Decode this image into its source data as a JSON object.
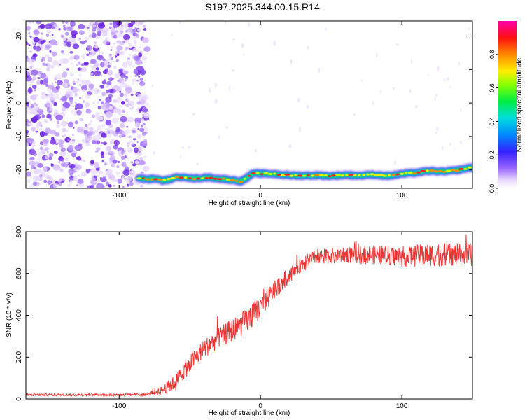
{
  "page": {
    "title": "S197.2025.344.00.15.R14"
  },
  "chart_data": [
    {
      "type": "heatmap",
      "title": "S197.2025.344.00.15.R14",
      "xlabel": "Height of straight line (km)",
      "ylabel": "Frequency (Hz)",
      "xlim": [
        -166,
        150
      ],
      "ylim": [
        -25.5,
        24.5
      ],
      "x_ticks": [
        -100,
        0,
        100
      ],
      "y_ticks": [
        -20,
        -10,
        0,
        10,
        20
      ],
      "noise_region_x": [
        -166,
        -82
      ],
      "signal_track": {
        "x": [
          -86,
          -80,
          -74,
          -70,
          -66,
          -60,
          -54,
          -48,
          -42,
          -36,
          -30,
          -24,
          -18,
          -14,
          -10,
          -6,
          -2,
          0,
          10,
          20,
          30,
          40,
          50,
          60,
          70,
          80,
          90,
          100,
          110,
          120,
          130,
          140,
          150
        ],
        "freq": [
          -22.5,
          -22.8,
          -22.6,
          -23.2,
          -23.0,
          -22.3,
          -22.0,
          -22.6,
          -22.4,
          -22.2,
          -22.6,
          -22.8,
          -23.1,
          -23.4,
          -22.5,
          -21.2,
          -21.0,
          -21.1,
          -21.2,
          -21.6,
          -21.7,
          -21.6,
          -21.8,
          -21.5,
          -21.7,
          -21.4,
          -21.8,
          -21.2,
          -20.8,
          -20.3,
          -20.5,
          -20.0,
          -19.2
        ]
      },
      "colorbar": {
        "label": "Normalized spectral amplitude",
        "range": [
          0,
          1
        ],
        "ticks": [
          0.0,
          0.2,
          0.4,
          0.6,
          0.8
        ]
      }
    },
    {
      "type": "line",
      "xlabel": "Height of straight line (km)",
      "ylabel": "SNR (10 * v/v)",
      "xlim": [
        -166,
        150
      ],
      "ylim": [
        0,
        800
      ],
      "x_ticks": [
        -100,
        0,
        100
      ],
      "y_ticks": [
        0,
        200,
        400,
        600,
        800
      ],
      "line_color": "#ee3333",
      "series": [
        {
          "name": "SNR",
          "trend_x": [
            -166,
            -100,
            -80,
            -70,
            -60,
            -50,
            -40,
            -30,
            -20,
            -10,
            0,
            10,
            20,
            30,
            40,
            60,
            80,
            100,
            120,
            150
          ],
          "trend_y": [
            20,
            20,
            22,
            40,
            80,
            170,
            240,
            290,
            330,
            370,
            440,
            520,
            590,
            650,
            680,
            690,
            690,
            680,
            690,
            690
          ],
          "noise_amplitude_y": [
            6,
            6,
            8,
            20,
            40,
            45,
            45,
            50,
            55,
            60,
            55,
            45,
            40,
            35,
            35,
            40,
            45,
            50,
            55,
            55
          ]
        }
      ]
    }
  ]
}
